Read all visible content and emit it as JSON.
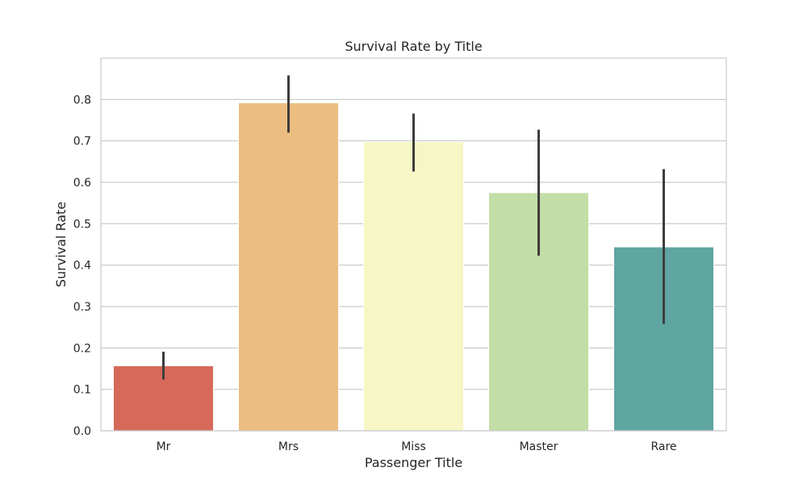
{
  "chart_data": {
    "type": "bar",
    "title": "Survival Rate by Title",
    "xlabel": "Passenger Title",
    "ylabel": "Survival Rate",
    "categories": [
      "Mr",
      "Mrs",
      "Miss",
      "Master",
      "Rare"
    ],
    "values": [
      0.157,
      0.792,
      0.698,
      0.575,
      0.444
    ],
    "error_low": [
      0.124,
      0.72,
      0.626,
      0.423,
      0.258
    ],
    "error_high": [
      0.191,
      0.858,
      0.766,
      0.727,
      0.632
    ],
    "colors": [
      "#d6695a",
      "#ebbd80",
      "#f6f7c4",
      "#c2dea6",
      "#5fa5a2"
    ],
    "ylim": [
      0,
      0.9
    ],
    "yticks": [
      0.0,
      0.1,
      0.2,
      0.3,
      0.4,
      0.5,
      0.6,
      0.7,
      0.8
    ],
    "ytick_labels": [
      "0.0",
      "0.1",
      "0.2",
      "0.3",
      "0.4",
      "0.5",
      "0.6",
      "0.7",
      "0.8"
    ],
    "grid": true,
    "legend": "none"
  }
}
